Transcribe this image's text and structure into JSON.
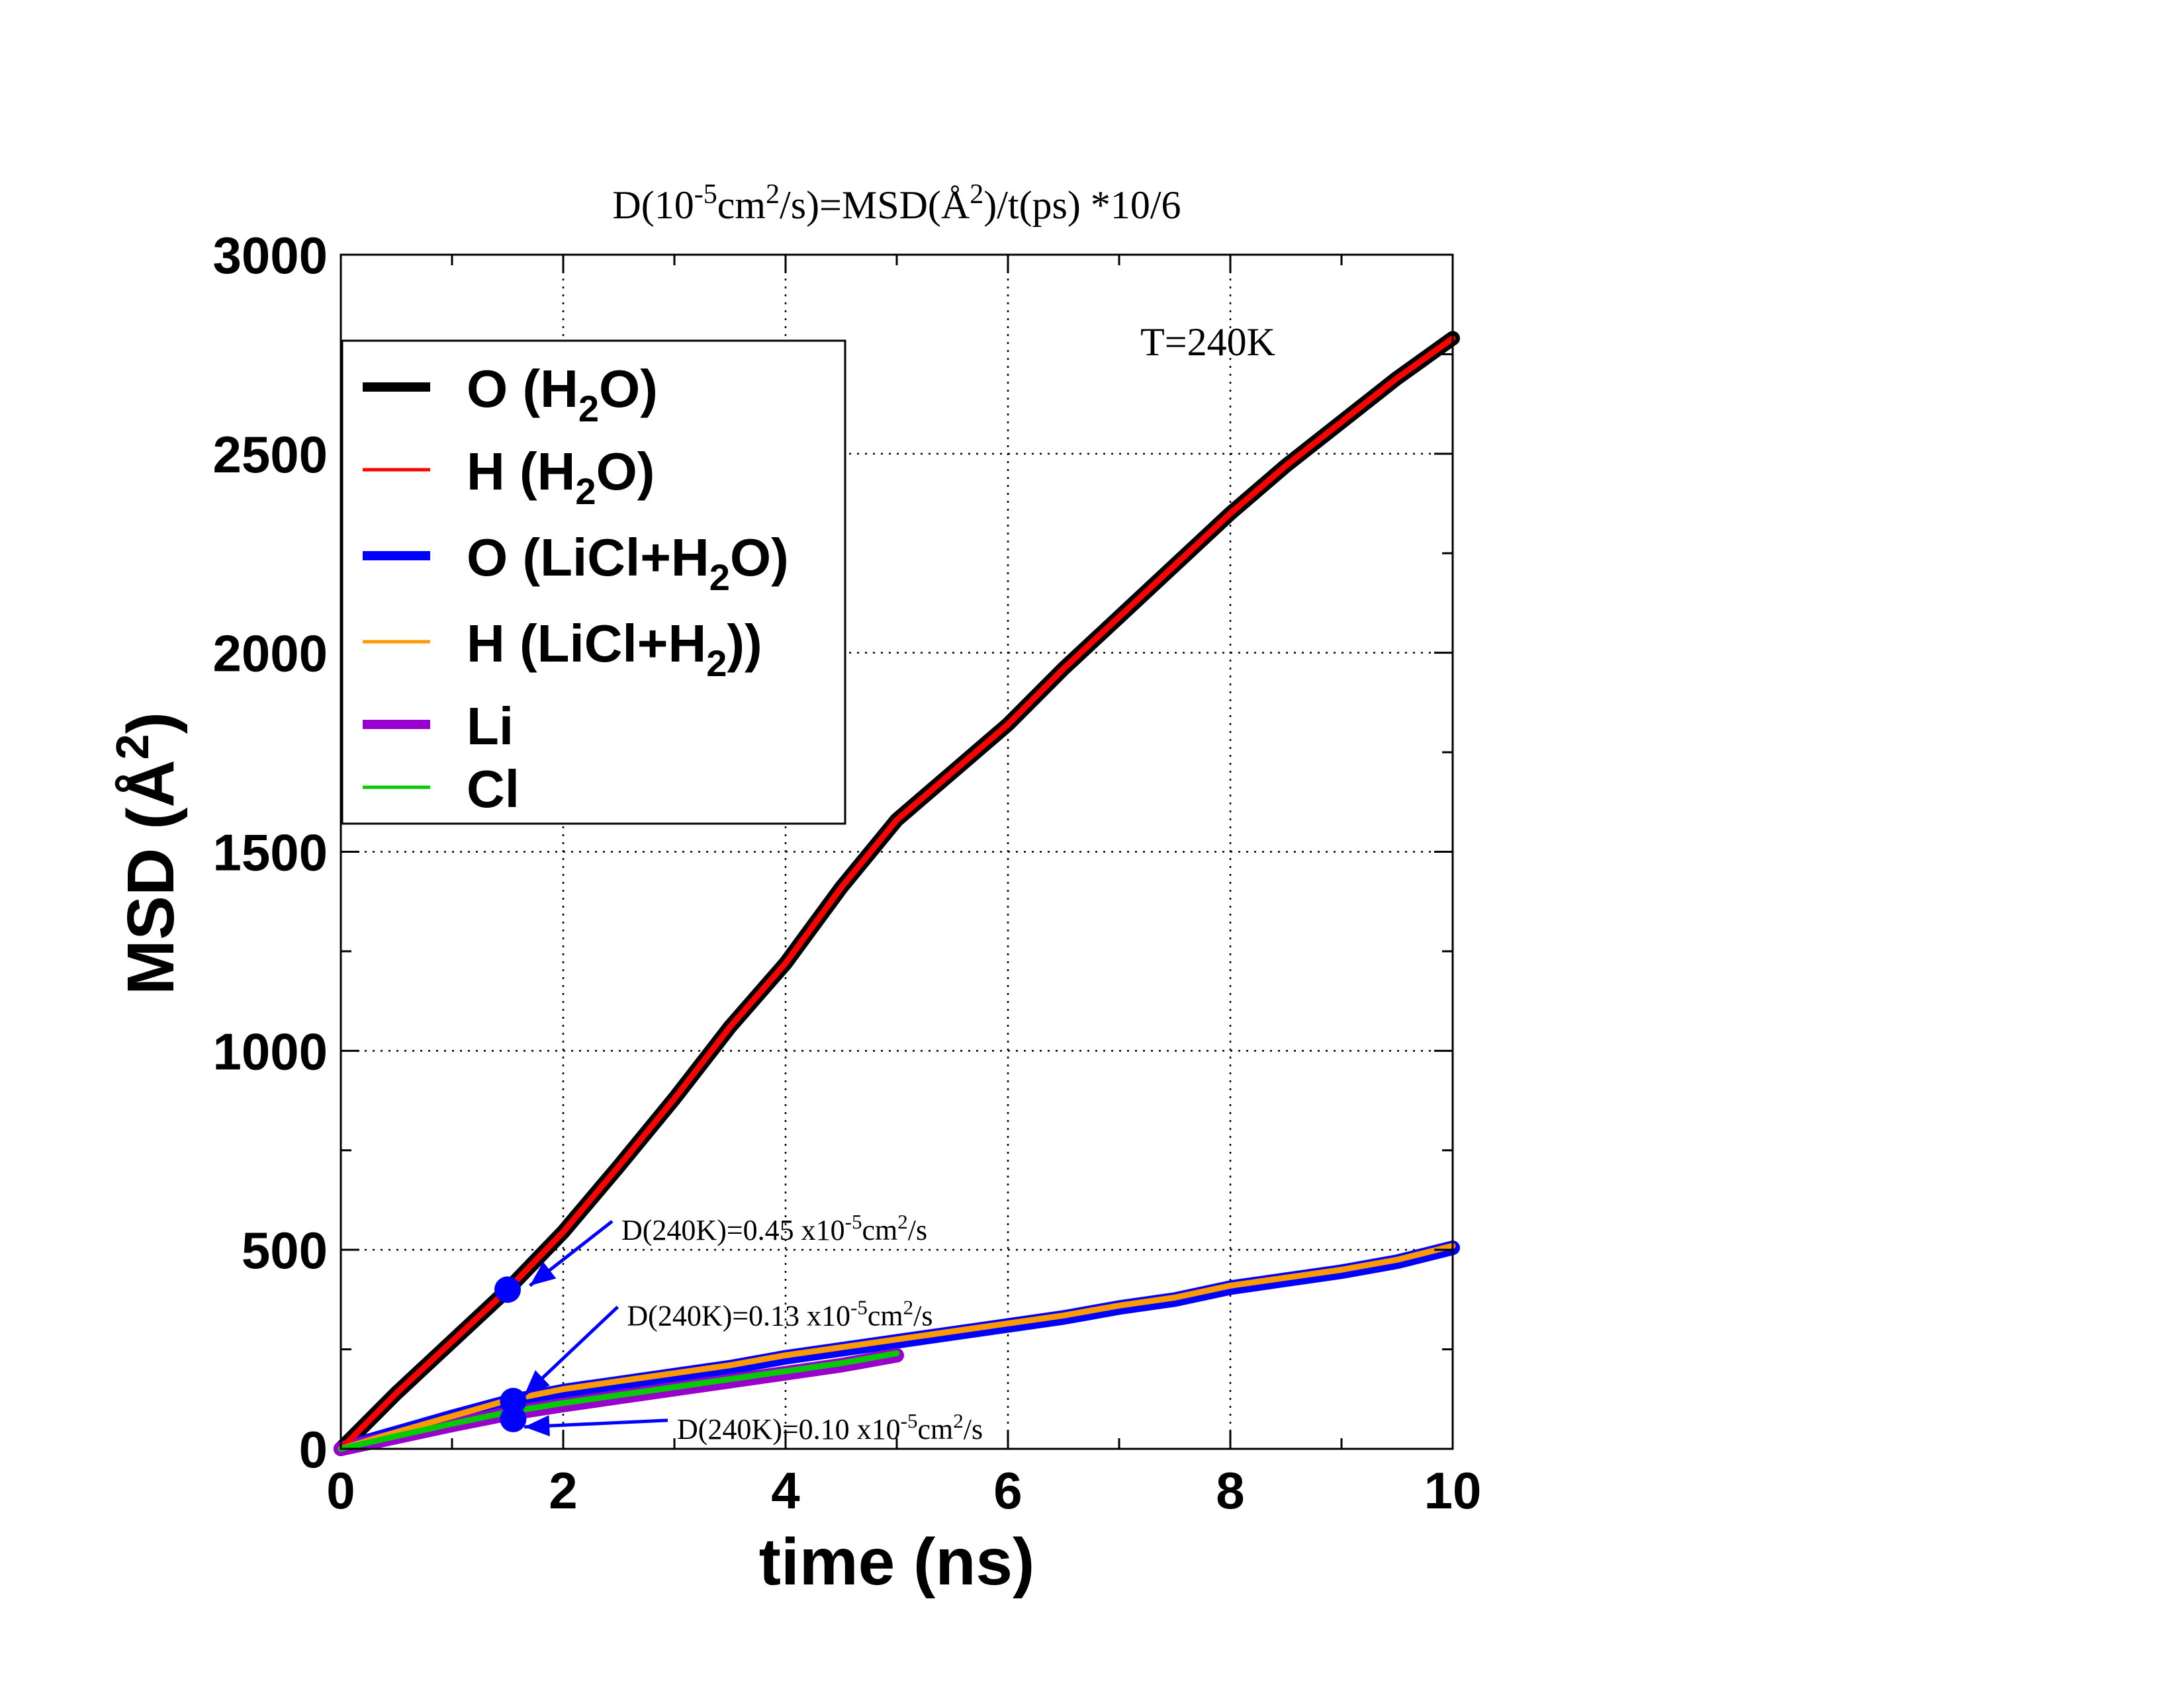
{
  "chart_data": {
    "type": "line",
    "title": {
      "parts": [
        {
          "t": "D(10"
        },
        {
          "t": "-5",
          "sup": true
        },
        {
          "t": "cm"
        },
        {
          "t": "2",
          "sup": true
        },
        {
          "t": "/s)=MSD(Å"
        },
        {
          "t": "2",
          "sup": true
        },
        {
          "t": ")/t(ps) *10/6"
        }
      ]
    },
    "xlabel": "time (ns)",
    "ylabel": {
      "parts": [
        {
          "t": "MSD (Å"
        },
        {
          "t": "2",
          "sup": true
        },
        {
          "t": ")"
        }
      ]
    },
    "xlim": [
      0,
      10
    ],
    "ylim": [
      0,
      3000
    ],
    "xticks": [
      "0",
      "2",
      "4",
      "6",
      "8",
      "10"
    ],
    "yticks": [
      "0",
      "500",
      "1000",
      "1500",
      "2000",
      "2500",
      "3000"
    ],
    "grid": true,
    "legend_position": "upper-left",
    "temperature_label": "T=240K",
    "series": [
      {
        "name": {
          "parts": [
            {
              "t": "O (H"
            },
            {
              "t": "2",
              "sub": true
            },
            {
              "t": "O)"
            }
          ]
        },
        "color": "#000000",
        "width": "thick",
        "x": [
          0,
          0.5,
          1,
          1.5,
          2,
          2.5,
          3,
          3.5,
          4,
          4.5,
          5,
          5.5,
          6,
          6.5,
          7,
          7.5,
          8,
          8.5,
          9,
          9.5,
          10
        ],
        "y": [
          0,
          140,
          270,
          400,
          545,
          710,
          880,
          1060,
          1220,
          1410,
          1580,
          1700,
          1820,
          1960,
          2090,
          2220,
          2350,
          2470,
          2580,
          2690,
          2790
        ]
      },
      {
        "name": {
          "parts": [
            {
              "t": "H (H"
            },
            {
              "t": "2",
              "sub": true
            },
            {
              "t": "O)"
            }
          ]
        },
        "color": "#ff0000",
        "width": "thin",
        "x": [
          0,
          0.5,
          1,
          1.5,
          2,
          2.5,
          3,
          3.5,
          4,
          4.5,
          5,
          5.5,
          6,
          6.5,
          7,
          7.5,
          8,
          8.5,
          9,
          9.5,
          10
        ],
        "y": [
          0,
          140,
          270,
          400,
          545,
          710,
          880,
          1060,
          1220,
          1410,
          1580,
          1700,
          1820,
          1960,
          2090,
          2220,
          2350,
          2470,
          2580,
          2690,
          2790
        ]
      },
      {
        "name": {
          "parts": [
            {
              "t": "O (LiCl+H"
            },
            {
              "t": "2",
              "sub": true
            },
            {
              "t": "O)"
            }
          ]
        },
        "color": "#0000ff",
        "width": "thick",
        "x": [
          0,
          0.5,
          1,
          1.5,
          2,
          2.5,
          3,
          3.5,
          4,
          4.5,
          5,
          5.5,
          6,
          6.5,
          7,
          7.5,
          8,
          8.5,
          9,
          9.5,
          10
        ],
        "y": [
          0,
          40,
          80,
          118,
          145,
          165,
          185,
          205,
          230,
          250,
          270,
          290,
          310,
          330,
          355,
          375,
          405,
          425,
          445,
          470,
          505
        ]
      },
      {
        "name": {
          "parts": [
            {
              "t": "H (LiCl+H"
            },
            {
              "t": "2",
              "sub": true
            },
            {
              "t": "))"
            }
          ]
        },
        "color": "#ff9900",
        "width": "thin",
        "x": [
          0,
          0.5,
          1,
          1.5,
          2,
          2.5,
          3,
          3.5,
          4,
          4.5,
          5,
          5.5,
          6,
          6.5,
          7,
          7.5,
          8,
          8.5,
          9,
          9.5,
          10
        ],
        "y": [
          0,
          42,
          82,
          122,
          150,
          170,
          190,
          210,
          235,
          255,
          275,
          295,
          315,
          335,
          360,
          380,
          410,
          430,
          450,
          475,
          510
        ]
      },
      {
        "name": {
          "parts": [
            {
              "t": "Li"
            }
          ]
        },
        "color": "#9900cc",
        "width": "thick",
        "x": [
          0,
          0.5,
          1,
          1.5,
          2,
          2.5,
          3,
          3.5,
          4,
          4.5,
          5
        ],
        "y": [
          0,
          30,
          60,
          88,
          110,
          130,
          150,
          170,
          190,
          210,
          235
        ]
      },
      {
        "name": {
          "parts": [
            {
              "t": "Cl"
            }
          ]
        },
        "color": "#00cc00",
        "width": "thin",
        "x": [
          0,
          0.5,
          1,
          1.5,
          2,
          2.5,
          3,
          3.5,
          4,
          4.5,
          5
        ],
        "y": [
          0,
          32,
          63,
          92,
          115,
          135,
          155,
          175,
          195,
          215,
          240
        ]
      }
    ],
    "annotations": [
      {
        "parts": [
          {
            "t": "D(240K)=0.45 x10"
          },
          {
            "t": "-5",
            "sup": true
          },
          {
            "t": "cm"
          },
          {
            "t": "2",
            "sup": true
          },
          {
            "t": "/s"
          }
        ],
        "text_x": 2.5,
        "text_y": 555,
        "arrow_to": [
          1.7,
          410
        ],
        "point": [
          1.5,
          400
        ]
      },
      {
        "parts": [
          {
            "t": "D(240K)=0.13 x10"
          },
          {
            "t": "-5",
            "sup": true
          },
          {
            "t": "cm"
          },
          {
            "t": "2",
            "sup": true
          },
          {
            "t": "/s"
          }
        ],
        "text_x": 2.55,
        "text_y": 340,
        "arrow_to": [
          1.65,
          135
        ],
        "point": [
          1.55,
          120
        ]
      },
      {
        "parts": [
          {
            "t": "D(240K)=0.10 x10"
          },
          {
            "t": "-5",
            "sup": true
          },
          {
            "t": "cm"
          },
          {
            "t": "2",
            "sup": true
          },
          {
            "t": "/s"
          }
        ],
        "text_x": 3.0,
        "text_y": 55,
        "arrow_to": [
          1.65,
          55
        ],
        "point": [
          1.55,
          75
        ]
      }
    ]
  }
}
